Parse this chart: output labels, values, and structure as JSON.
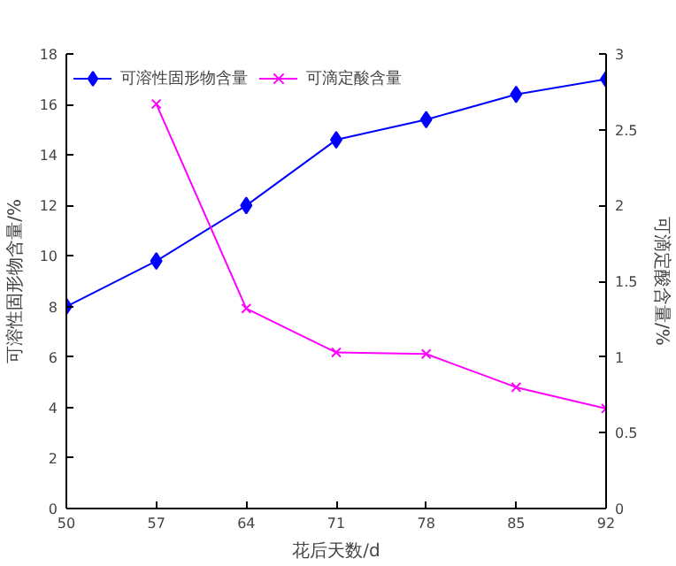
{
  "chart_data": {
    "type": "line",
    "xlabel": "花后天数/d",
    "ylabel": "可溶性固形物含量/%",
    "y2label": "可滴定酸含量/%",
    "x": [
      50,
      57,
      64,
      71,
      78,
      85,
      92
    ],
    "xlim": [
      50,
      92
    ],
    "xticks": [
      50,
      57,
      64,
      71,
      78,
      85,
      92
    ],
    "ylim": [
      0,
      18
    ],
    "yticks": [
      0,
      2,
      4,
      6,
      8,
      10,
      12,
      14,
      16,
      18
    ],
    "y2lim": [
      0,
      3
    ],
    "y2ticks": [
      0,
      0.5,
      1,
      1.5,
      2,
      2.5,
      3
    ],
    "grid": false,
    "legend": "top left",
    "series": [
      {
        "name": "可溶性固形物含量",
        "color": "#0000ff",
        "marker": "diamond",
        "values": [
          8,
          9.8,
          12,
          14.6,
          15.4,
          16.4,
          17
        ]
      },
      {
        "name": "可滴定酸含量",
        "color": "#ff00ff",
        "marker": "cross",
        "axis": "y2",
        "values": [
          null,
          2.67,
          1.32,
          1.03,
          1.02,
          0.8,
          0.66
        ]
      }
    ]
  }
}
